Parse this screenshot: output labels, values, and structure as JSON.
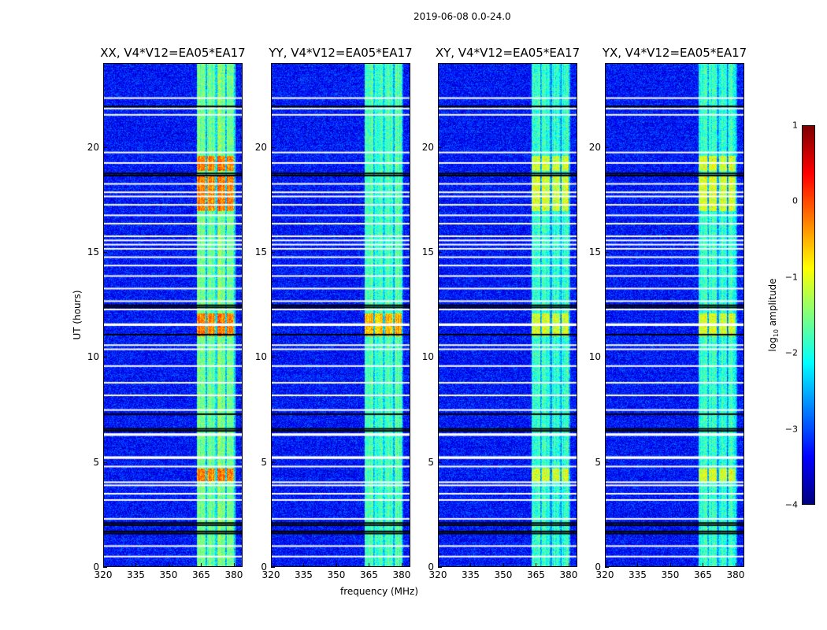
{
  "suptitle": "2019-06-08 0.0-24.0",
  "chart_data": {
    "type": "heatmap",
    "xlabel": "frequency (MHz)",
    "ylabel": "UT (hours)",
    "xlim": [
      320,
      384
    ],
    "ylim": [
      0,
      24
    ],
    "xticks": [
      "320",
      "335",
      "350",
      "365",
      "380"
    ],
    "xtick_values": [
      320,
      335,
      350,
      365,
      380
    ],
    "yticks": [
      "0",
      "5",
      "10",
      "15",
      "20"
    ],
    "ytick_values": [
      0,
      5,
      10,
      15,
      20
    ],
    "panels": [
      {
        "title": "XX, V4*V12=EA05*EA17",
        "band_level": -1.6,
        "bright_level": -0.3,
        "bright_periods": [
          [
            17.0,
            18.7
          ],
          [
            18.9,
            19.6
          ],
          [
            4.1,
            4.7
          ],
          [
            11.0,
            12.1
          ]
        ]
      },
      {
        "title": "YY, V4*V12=EA05*EA17",
        "band_level": -1.8,
        "bright_level": -0.6,
        "bright_periods": [
          [
            11.0,
            12.1
          ]
        ]
      },
      {
        "title": "XY, V4*V12=EA05*EA17",
        "band_level": -1.9,
        "bright_level": -1.1,
        "bright_periods": [
          [
            17.0,
            18.7
          ],
          [
            18.9,
            19.6
          ],
          [
            4.1,
            4.7
          ],
          [
            11.0,
            12.1
          ]
        ]
      },
      {
        "title": "YX, V4*V12=EA05*EA17",
        "band_level": -1.9,
        "bright_level": -1.1,
        "bright_periods": [
          [
            17.0,
            18.7
          ],
          [
            18.9,
            19.6
          ],
          [
            4.1,
            4.7
          ],
          [
            11.0,
            12.1
          ]
        ]
      }
    ],
    "background_level": -3.3,
    "rfi_band_mhz": [
      [
        363,
        367
      ],
      [
        367.7,
        371.5
      ],
      [
        372.3,
        376.3
      ],
      [
        377,
        380
      ]
    ],
    "flagged_white_utc": [
      0.5,
      1.0,
      2.3,
      3.2,
      3.5,
      3.9,
      4.05,
      4.8,
      5.2,
      5.25,
      6.3,
      6.35,
      7.5,
      8.2,
      8.8,
      9.6,
      10.4,
      10.6,
      11.55,
      11.6,
      12.3,
      12.7,
      13.3,
      13.9,
      14.4,
      14.8,
      15.2,
      15.4,
      15.6,
      15.8,
      16.4,
      16.8,
      17.3,
      17.7,
      17.9,
      18.3,
      19.3,
      19.8,
      21.6,
      21.9,
      22.4
    ],
    "flagged_black_utc": [
      1.6,
      1.7,
      2.0,
      2.1,
      6.5,
      6.6,
      7.3,
      11.1,
      12.4,
      12.5,
      18.7,
      18.8,
      22.0
    ],
    "colorbar": {
      "label": "log10 amplitude",
      "ticks": [
        "−4",
        "−3",
        "−2",
        "−1",
        "0",
        "1"
      ],
      "tick_values": [
        -4,
        -3,
        -2,
        -1,
        0,
        1
      ],
      "range": [
        -4,
        1
      ],
      "colormap": "jet"
    }
  }
}
